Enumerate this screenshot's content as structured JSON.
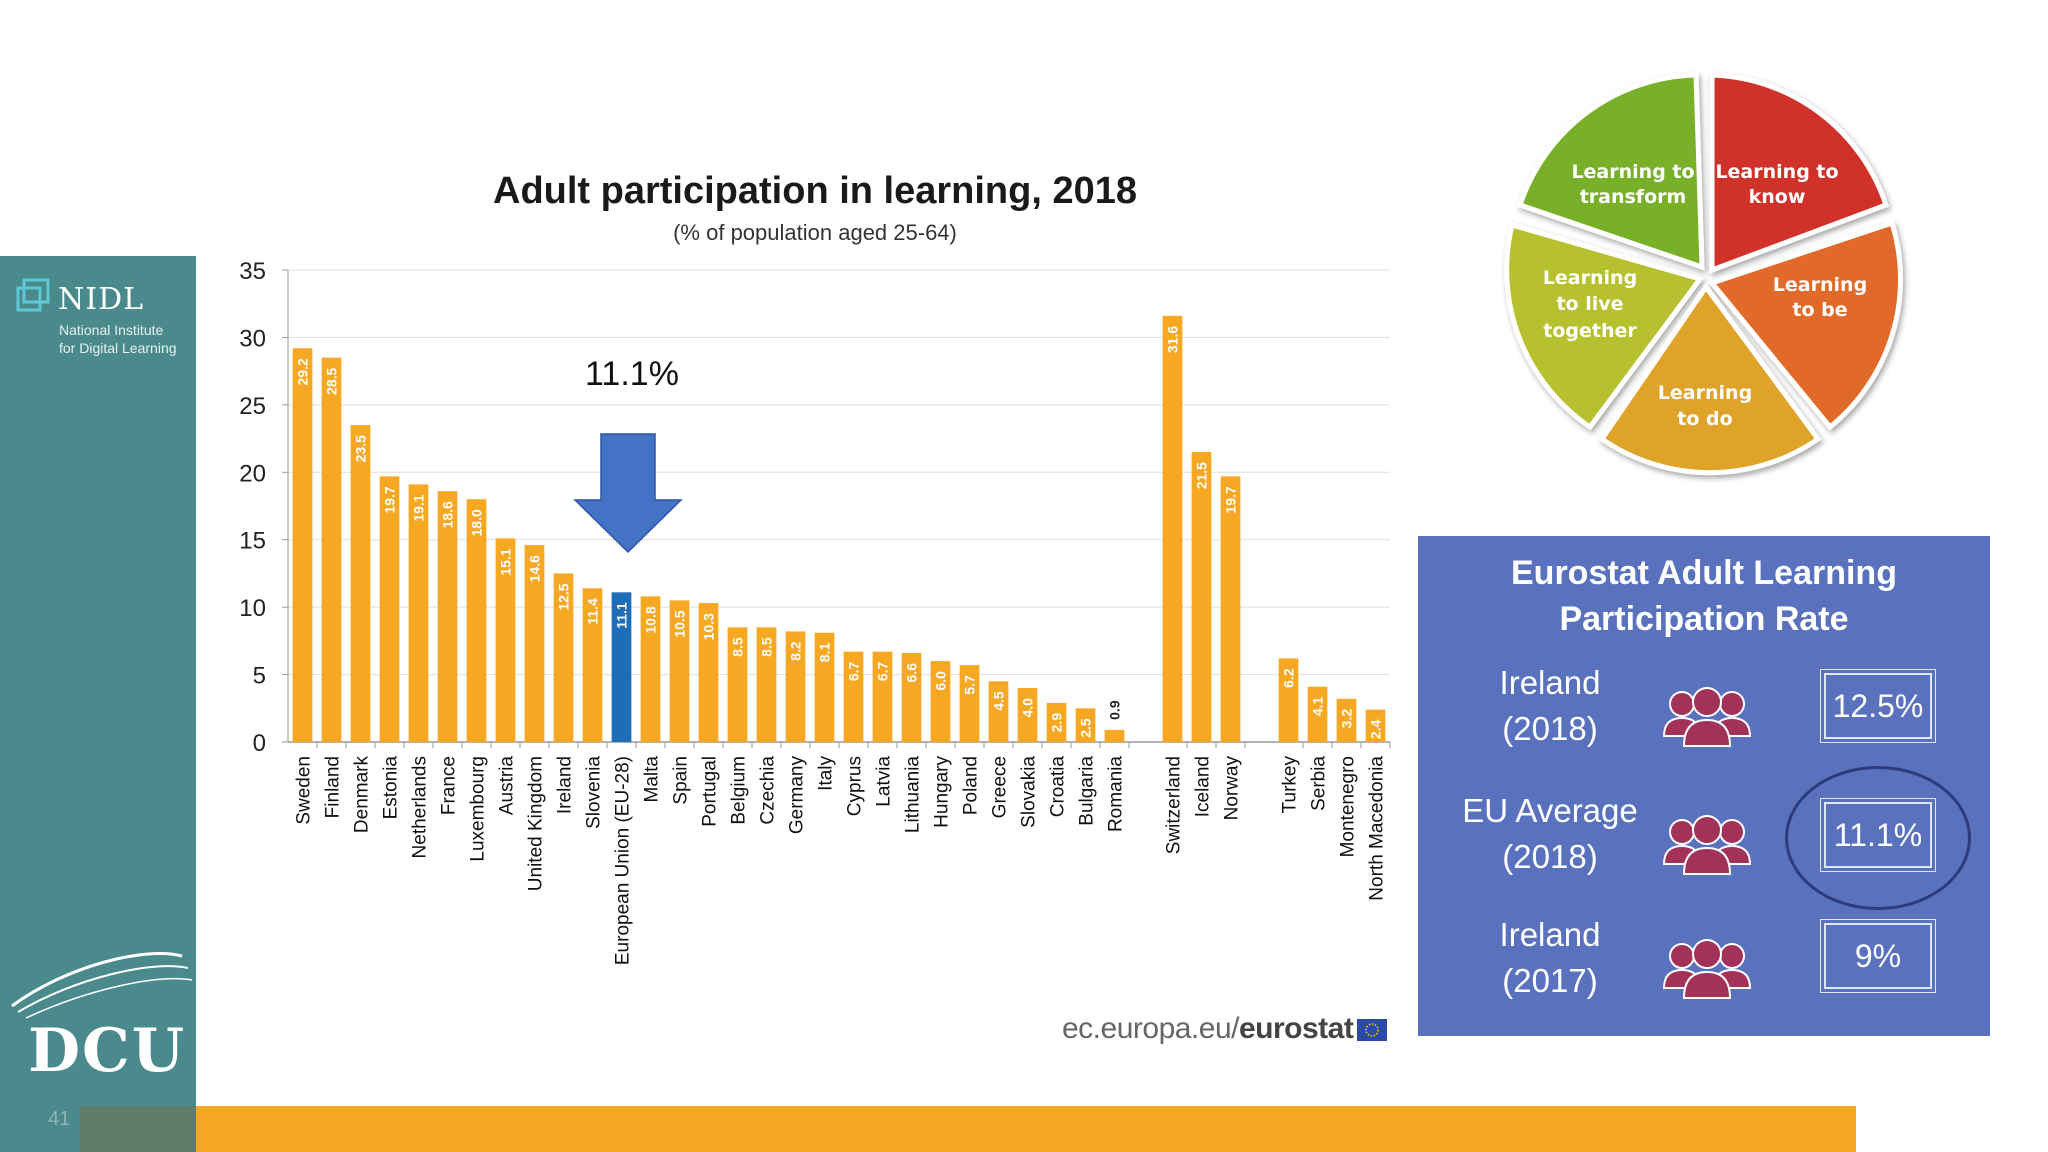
{
  "sidebar": {
    "logo_name": "NIDL",
    "logo_line1": "National Institute",
    "logo_line2": "for Digital Learning",
    "university": "DCU",
    "page_number": "41"
  },
  "chart_data": {
    "type": "bar",
    "title": "Adult participation in learning, 2018",
    "subtitle": "(% of population aged 25-64)",
    "ylim": [
      0,
      35
    ],
    "yticks": [
      0,
      5,
      10,
      15,
      20,
      25,
      30,
      35
    ],
    "grid": true,
    "groups": [
      {
        "categories": [
          "Sweden",
          "Finland",
          "Denmark",
          "Estonia",
          "Netherlands",
          "France",
          "Luxembourg",
          "Austria",
          "United Kingdom",
          "Ireland",
          "Slovenia",
          "European Union (EU-28)",
          "Malta",
          "Spain",
          "Portugal",
          "Belgium",
          "Czechia",
          "Germany",
          "Italy",
          "Cyprus",
          "Latvia",
          "Lithuania",
          "Hungary",
          "Poland",
          "Greece",
          "Slovakia",
          "Croatia",
          "Bulgaria",
          "Romania"
        ],
        "values": [
          29.2,
          28.5,
          23.5,
          19.7,
          19.1,
          18.6,
          18.0,
          15.1,
          14.6,
          12.5,
          11.4,
          11.1,
          10.8,
          10.5,
          10.3,
          8.5,
          8.5,
          8.2,
          8.1,
          6.7,
          6.7,
          6.6,
          6.0,
          5.7,
          4.5,
          4.0,
          2.9,
          2.5,
          0.9
        ]
      },
      {
        "categories": [
          "Switzerland",
          "Iceland",
          "Norway"
        ],
        "values": [
          31.6,
          21.5,
          19.7
        ]
      },
      {
        "categories": [
          "Turkey",
          "Serbia",
          "Montenegro",
          "North Macedonia"
        ],
        "values": [
          6.2,
          4.1,
          3.2,
          2.4
        ]
      }
    ],
    "value_labels": [
      "29.2",
      "28.5",
      "23.5",
      "19.7",
      "19.1",
      "18.6",
      "18.0",
      "15.1",
      "14.6",
      "12.5",
      "11.4",
      "11.1",
      "10.8",
      "10.5",
      "10.3",
      "8.5",
      "8.5",
      "8.2",
      "8.1",
      "6.7",
      "6.7",
      "6.6",
      "6.0",
      "5.7",
      "4.5",
      "4.0",
      "2.9",
      "2.5",
      "0.9",
      "31.6",
      "21.5",
      "19.7",
      "6.2",
      "4.1",
      "3.2",
      "2.4"
    ],
    "highlight": "European Union (EU-28)",
    "annotation": "11.1%",
    "colors": {
      "bar": "#f7a823",
      "highlight": "#1f6db5",
      "arrow": "#4472c4",
      "grid": "#dedede"
    }
  },
  "source": {
    "prefix": "ec.europa.eu/",
    "brand": "eurostat"
  },
  "wheel": {
    "segments": [
      {
        "label": "Learning to know",
        "color": "#d0312b"
      },
      {
        "label": "Learning to be",
        "color": "#e16b2c"
      },
      {
        "label": "Learning to do",
        "color": "#dfa32a"
      },
      {
        "label": "Learning to live together",
        "color": "#b7c02d"
      },
      {
        "label": "Learning to transform",
        "color": "#78b02c"
      }
    ]
  },
  "stats": {
    "title_line1": "Eurostat Adult Learning",
    "title_line2": "Participation Rate",
    "rows": [
      {
        "label_line1": "Ireland",
        "label_line2": "(2018)",
        "value": "12.5%"
      },
      {
        "label_line1": "EU Average",
        "label_line2": "(2018)",
        "value": "11.1%"
      },
      {
        "label_line1": "Ireland",
        "label_line2": "(2017)",
        "value": "9%"
      }
    ],
    "panel_color": "#5a72be",
    "icon_color": "#a3325a"
  }
}
